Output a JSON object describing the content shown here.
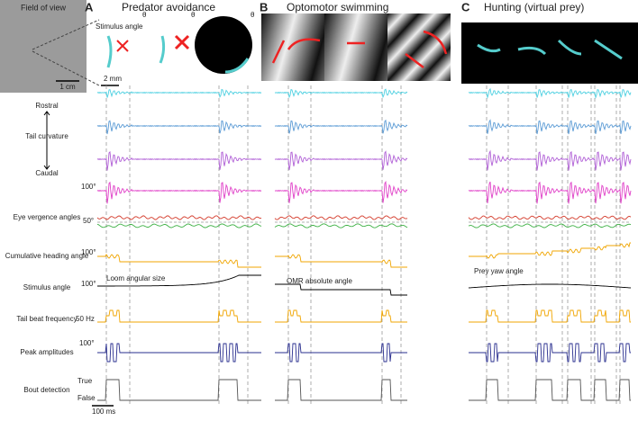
{
  "panels": [
    {
      "letter": "A",
      "title": "Predator avoidance"
    },
    {
      "letter": "B",
      "title": "Optomotor swimming"
    },
    {
      "letter": "C",
      "title": "Hunting (virtual prey)"
    }
  ],
  "field_of_view": {
    "title": "Field of view",
    "scale": "1 cm"
  },
  "panel_a_image": {
    "stimulus_angle": "Stimulus angle",
    "theta": "θ",
    "scale": "2 mm"
  },
  "rows": {
    "rostral": "Rostral",
    "tail_curvature": "Tail curvature",
    "caudal": "Caudal",
    "tail_scale": "100°",
    "eye_vergence": "Eye vergence angles",
    "eye_scale": "50°",
    "heading": "Cumulative heading angle",
    "heading_scale": "100°",
    "stimulus": "Stimulus angle",
    "stimulus_scale": "100°",
    "tail_beat": "Tail beat frequency",
    "tail_beat_scale": "50 Hz",
    "peak": "Peak amplitudes",
    "peak_scale": "100°",
    "bout": "Bout detection",
    "bout_true": "True",
    "bout_false": "False",
    "time_scale": "100 ms"
  },
  "annotations": {
    "loom": "Loom angular size",
    "omr": "OMR absolute angle",
    "prey": "Prey yaw angle"
  }
}
